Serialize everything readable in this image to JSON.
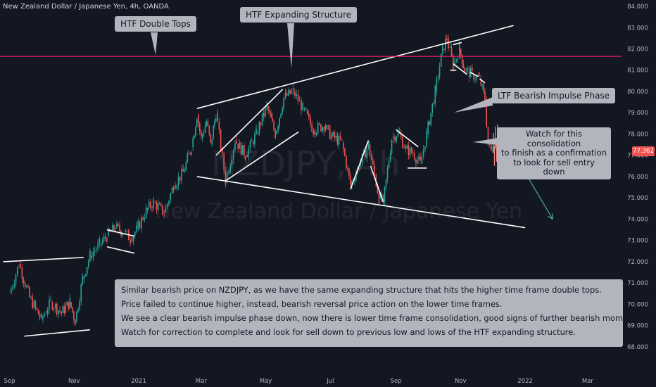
{
  "header": {
    "symbol_title": "New Zealand Dollar / Japanese Yen, 4h, OANDA"
  },
  "watermark": {
    "symbol": "NZDJPY, 4h",
    "name": "New Zealand Dollar / Japanese Yen"
  },
  "colors": {
    "background": "#131722",
    "bull": "#26a69a",
    "bear": "#ef5350",
    "lines": "#ffffff",
    "horizontal_line": "#e91e63",
    "annotation_bg": "#b2b5be",
    "arrow": "#4a9a9e"
  },
  "annotations": {
    "htf_double_tops": "HTF Double Tops",
    "htf_expanding_structure": "HTF Expanding Structure",
    "ltf_bearish_impulse": "LTF Bearish Impulse Phase",
    "watch_consolidation": [
      "Watch for this consolidation",
      "to finish as a confirmation",
      "to look for sell entry down"
    ],
    "notes": [
      "Similar bearish price on NZDJPY, as we have the same expanding structure that hits the higher time frame double tops.",
      "Price failed to continue higher, instead, bearish reversal price action on the lower time frames.",
      "We see a clear bearish impulse phase down, now there is lower time frame consolidation, good signs of further bearish momentum.",
      "Watch for correction to complete and look for sell down to previous low and lows of the HTF expanding structure."
    ]
  },
  "current_price_label": "77.362",
  "chart_data": {
    "type": "line",
    "title": "New Zealand Dollar / Japanese Yen, 4h, OANDA",
    "x_ticks": [
      "Sep",
      "Nov",
      "2021",
      "Mar",
      "May",
      "Jul",
      "Sep",
      "Nov",
      "2022",
      "Mar"
    ],
    "y_ticks": [
      "68.000",
      "69.000",
      "70.000",
      "71.000",
      "72.000",
      "73.000",
      "74.000",
      "75.000",
      "76.000",
      "77.000",
      "78.000",
      "79.000",
      "80.000",
      "81.000",
      "82.000",
      "83.000",
      "84.000"
    ],
    "ylim": [
      67.5,
      84.1
    ],
    "current_price": 77.362,
    "resistance_level": 81.65,
    "series": [
      {
        "values": [
          {
            "x": "2020-09-01",
            "y": 70.5
          },
          {
            "x": "2020-09-10",
            "y": 71.9
          },
          {
            "x": "2020-09-20",
            "y": 70.3
          },
          {
            "x": "2020-10-01",
            "y": 69.3
          },
          {
            "x": "2020-10-10",
            "y": 70.1
          },
          {
            "x": "2020-10-20",
            "y": 69.6
          },
          {
            "x": "2020-10-28",
            "y": 70.1
          },
          {
            "x": "2020-11-02",
            "y": 69.2
          },
          {
            "x": "2020-11-09",
            "y": 71.2
          },
          {
            "x": "2020-11-16",
            "y": 72.3
          },
          {
            "x": "2020-11-25",
            "y": 72.8
          },
          {
            "x": "2020-12-02",
            "y": 73.2
          },
          {
            "x": "2020-12-10",
            "y": 73.6
          },
          {
            "x": "2020-12-18",
            "y": 73.4
          },
          {
            "x": "2020-12-24",
            "y": 73.1
          },
          {
            "x": "2020-12-30",
            "y": 73.5
          },
          {
            "x": "2021-01-08",
            "y": 74.4
          },
          {
            "x": "2021-01-15",
            "y": 74.8
          },
          {
            "x": "2021-01-25",
            "y": 74.3
          },
          {
            "x": "2021-02-03",
            "y": 75.6
          },
          {
            "x": "2021-02-12",
            "y": 76.2
          },
          {
            "x": "2021-02-20",
            "y": 77.4
          },
          {
            "x": "2021-02-25",
            "y": 78.9
          },
          {
            "x": "2021-03-01",
            "y": 77.8
          },
          {
            "x": "2021-03-06",
            "y": 78.6
          },
          {
            "x": "2021-03-10",
            "y": 77.5
          },
          {
            "x": "2021-03-15",
            "y": 79.0
          },
          {
            "x": "2021-03-24",
            "y": 75.8
          },
          {
            "x": "2021-04-02",
            "y": 77.7
          },
          {
            "x": "2021-04-12",
            "y": 77.0
          },
          {
            "x": "2021-04-22",
            "y": 78.0
          },
          {
            "x": "2021-05-02",
            "y": 79.3
          },
          {
            "x": "2021-05-10",
            "y": 78.0
          },
          {
            "x": "2021-05-18",
            "y": 79.7
          },
          {
            "x": "2021-05-27",
            "y": 80.0
          },
          {
            "x": "2021-06-05",
            "y": 79.2
          },
          {
            "x": "2021-06-15",
            "y": 78.2
          },
          {
            "x": "2021-06-25",
            "y": 78.4
          },
          {
            "x": "2021-07-02",
            "y": 77.9
          },
          {
            "x": "2021-07-12",
            "y": 77.6
          },
          {
            "x": "2021-07-20",
            "y": 75.6
          },
          {
            "x": "2021-07-28",
            "y": 76.5
          },
          {
            "x": "2021-08-06",
            "y": 77.5
          },
          {
            "x": "2021-08-16",
            "y": 75.0
          },
          {
            "x": "2021-08-20",
            "y": 74.8
          },
          {
            "x": "2021-08-28",
            "y": 77.8
          },
          {
            "x": "2021-09-03",
            "y": 78.1
          },
          {
            "x": "2021-09-10",
            "y": 77.3
          },
          {
            "x": "2021-09-17",
            "y": 77.1
          },
          {
            "x": "2021-09-24",
            "y": 76.6
          },
          {
            "x": "2021-09-30",
            "y": 78.0
          },
          {
            "x": "2021-10-08",
            "y": 80.0
          },
          {
            "x": "2021-10-15",
            "y": 82.0
          },
          {
            "x": "2021-10-19",
            "y": 82.5
          },
          {
            "x": "2021-10-25",
            "y": 81.2
          },
          {
            "x": "2021-10-31",
            "y": 82.0
          },
          {
            "x": "2021-11-05",
            "y": 81.0
          },
          {
            "x": "2021-11-12",
            "y": 80.8
          },
          {
            "x": "2021-11-19",
            "y": 80.6
          },
          {
            "x": "2021-11-24",
            "y": 79.6
          },
          {
            "x": "2021-11-27",
            "y": 77.5
          },
          {
            "x": "2021-11-30",
            "y": 77.2
          },
          {
            "x": "2021-12-04",
            "y": 77.8
          },
          {
            "x": "2021-12-08",
            "y": 77.362
          }
        ]
      }
    ],
    "trendlines": [
      {
        "from": {
          "x": "2020-08-26",
          "y": 72.0
        },
        "to": {
          "x": "2020-11-10",
          "y": 72.2
        }
      },
      {
        "from": {
          "x": "2020-09-15",
          "y": 68.5
        },
        "to": {
          "x": "2020-11-16",
          "y": 68.8
        }
      },
      {
        "from": {
          "x": "2020-12-02",
          "y": 73.5
        },
        "to": {
          "x": "2020-12-28",
          "y": 73.2
        }
      },
      {
        "from": {
          "x": "2020-12-02",
          "y": 72.7
        },
        "to": {
          "x": "2020-12-28",
          "y": 72.4
        }
      },
      {
        "from": {
          "x": "2021-02-25",
          "y": 79.2
        },
        "to": {
          "x": "2021-12-21",
          "y": 83.1
        }
      },
      {
        "from": {
          "x": "2021-02-25",
          "y": 76.0
        },
        "to": {
          "x": "2022-01-01",
          "y": 73.6
        }
      },
      {
        "from": {
          "x": "2021-03-15",
          "y": 77.0
        },
        "to": {
          "x": "2021-05-17",
          "y": 80.1
        }
      },
      {
        "from": {
          "x": "2021-03-24",
          "y": 75.8
        },
        "to": {
          "x": "2021-06-01",
          "y": 78.1
        }
      },
      {
        "from": {
          "x": "2021-07-20",
          "y": 75.4
        },
        "to": {
          "x": "2021-08-06",
          "y": 77.7
        }
      },
      {
        "from": {
          "x": "2021-08-08",
          "y": 76.5
        },
        "to": {
          "x": "2021-08-20",
          "y": 74.8
        }
      },
      {
        "from": {
          "x": "2021-09-01",
          "y": 78.2
        },
        "to": {
          "x": "2021-09-22",
          "y": 77.4
        }
      },
      {
        "from": {
          "x": "2021-09-12",
          "y": 76.4
        },
        "to": {
          "x": "2021-09-30",
          "y": 76.4
        }
      },
      {
        "from": {
          "x": "2021-10-22",
          "y": 81.0
        },
        "to": {
          "x": "2021-10-28",
          "y": 81.0
        }
      },
      {
        "from": {
          "x": "2021-10-25",
          "y": 82.2
        },
        "to": {
          "x": "2021-11-02",
          "y": 82.3
        }
      },
      {
        "from": {
          "x": "2021-10-25",
          "y": 81.3
        },
        "to": {
          "x": "2021-11-07",
          "y": 80.8
        }
      },
      {
        "from": {
          "x": "2021-11-10",
          "y": 80.9
        },
        "to": {
          "x": "2021-11-18",
          "y": 80.7
        }
      },
      {
        "from": {
          "x": "2021-11-19",
          "y": 80.6
        },
        "to": {
          "x": "2021-11-24",
          "y": 80.4
        }
      }
    ],
    "projection_arrow": {
      "from": {
        "x": "2021-12-14",
        "y": 77.7
      },
      "to": {
        "x": "2022-01-27",
        "y": 74.0
      }
    },
    "grid": false,
    "legend": "top-left"
  }
}
